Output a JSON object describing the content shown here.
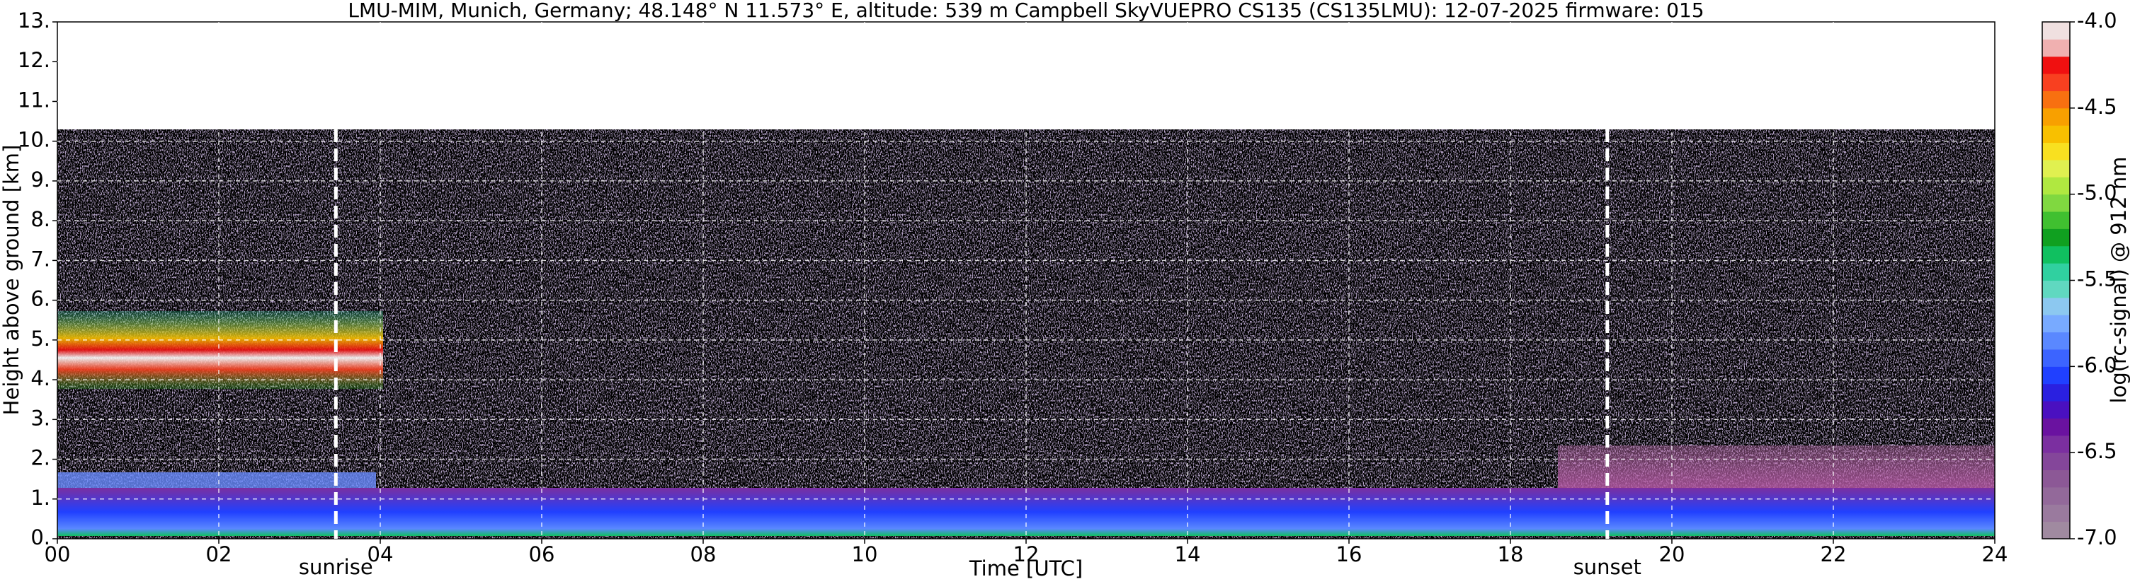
{
  "chart_data": {
    "type": "heatmap",
    "title": "LMU-MIM, Munich, Germany; 48.148° N 11.573° E, altitude: 539 m    Campbell SkyVUEPRO CS135 (CS135LMU): 12-07-2025    firmware: 015",
    "x_label": "Time [UTC]",
    "y_label": "Height above ground [km]",
    "xlim": [
      0,
      24
    ],
    "xticks": [
      {
        "value": 0,
        "label": "00"
      },
      {
        "value": 2,
        "label": "02"
      },
      {
        "value": 4,
        "label": "04"
      },
      {
        "value": 6,
        "label": "06"
      },
      {
        "value": 8,
        "label": "08"
      },
      10,
      12,
      14,
      16,
      18,
      20,
      22,
      24
    ],
    "ylim": [
      0,
      13
    ],
    "yticks": [
      {
        "value": 0,
        "label": "0."
      },
      {
        "value": 1,
        "label": "1."
      },
      {
        "value": 2,
        "label": "2."
      },
      {
        "value": 3,
        "label": "3."
      },
      {
        "value": 4,
        "label": "4."
      },
      {
        "value": 5,
        "label": "5."
      },
      {
        "value": 6,
        "label": "6."
      },
      {
        "value": 7,
        "label": "7."
      },
      {
        "value": 8,
        "label": "8."
      },
      {
        "value": 9,
        "label": "9."
      },
      {
        "value": 10,
        "label": "10."
      },
      {
        "value": 11,
        "label": "11."
      },
      {
        "value": 12,
        "label": "12."
      },
      {
        "value": 13,
        "label": "13."
      }
    ],
    "grid": true,
    "annotations": [
      {
        "label": "sunrise",
        "x": 3.45
      },
      {
        "label": "sunset",
        "x": 19.2
      }
    ],
    "colorbar": {
      "label": "log(rc-signal) @ 912 nm",
      "clim": [
        -7,
        -4
      ],
      "ticks": [
        {
          "value": -4,
          "label": "-4.0"
        },
        -4.5,
        {
          "value": -5,
          "label": "-5.0"
        },
        -5.5,
        {
          "value": -6,
          "label": "-6.0"
        },
        -6.5,
        {
          "value": -7,
          "label": "-7.0"
        }
      ],
      "colors": [
        "#a08aa0",
        "#9a7a9e",
        "#93699a",
        "#8c5896",
        "#84469a",
        "#7b2fa0",
        "#6a12a0",
        "#4a10c0",
        "#2a20e0",
        "#2040ff",
        "#3c64ff",
        "#5a88ff",
        "#78aaff",
        "#8cc8f0",
        "#60d8c0",
        "#30d0a0",
        "#10c060",
        "#10a020",
        "#40c030",
        "#80d840",
        "#b0e840",
        "#e0f050",
        "#f8e020",
        "#f8c000",
        "#f8a000",
        "#f87010",
        "#f84020",
        "#f01010",
        "#f0b0b0",
        "#f0e0e0"
      ]
    }
  }
}
